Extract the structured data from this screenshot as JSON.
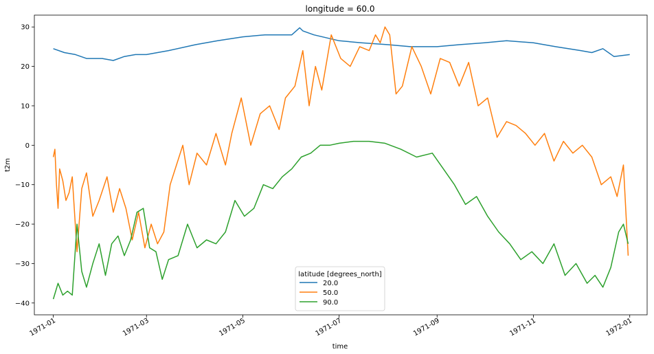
{
  "chart_data": {
    "type": "line",
    "title": "longitude = 60.0",
    "xlabel": "time",
    "ylabel": "t2m",
    "xlim": [
      "1970-12-20",
      "1972-01-12"
    ],
    "ylim": [
      -43,
      33
    ],
    "yticks": [
      -40,
      -30,
      -20,
      -10,
      0,
      10,
      20,
      30
    ],
    "ytick_labels": [
      "−40",
      "−30",
      "−20",
      "−10",
      "0",
      "10",
      "20",
      "30"
    ],
    "xticks": [
      "1971-01-01",
      "1971-03-01",
      "1971-05-01",
      "1971-07-01",
      "1971-09-01",
      "1971-11-01",
      "1972-01-01"
    ],
    "xtick_labels": [
      "1971-01",
      "1971-03",
      "1971-05",
      "1971-07",
      "1971-09",
      "1971-11",
      "1972-01"
    ],
    "grid": false,
    "legend": {
      "title": "latitude [degrees_north]",
      "placement": "lower-center"
    },
    "series": [
      {
        "name": "20.0",
        "color": "#1f77b4",
        "x": [
          "1971-01-01",
          "1971-01-08",
          "1971-01-15",
          "1971-01-22",
          "1971-02-01",
          "1971-02-08",
          "1971-02-15",
          "1971-02-22",
          "1971-03-01",
          "1971-03-15",
          "1971-04-01",
          "1971-04-15",
          "1971-05-01",
          "1971-05-15",
          "1971-06-01",
          "1971-06-06",
          "1971-06-08",
          "1971-06-15",
          "1971-07-01",
          "1971-07-15",
          "1971-08-01",
          "1971-08-15",
          "1971-09-01",
          "1971-09-15",
          "1971-10-01",
          "1971-10-15",
          "1971-11-01",
          "1971-11-15",
          "1971-12-01",
          "1971-12-08",
          "1971-12-15",
          "1971-12-22",
          "1972-01-01"
        ],
        "values": [
          24.5,
          23.5,
          23.0,
          22.0,
          22.0,
          21.5,
          22.5,
          23.0,
          23.0,
          24.0,
          25.5,
          26.5,
          27.5,
          28.0,
          28.0,
          29.8,
          29.0,
          28.0,
          26.5,
          26.0,
          25.5,
          25.0,
          25.0,
          25.5,
          26.0,
          26.5,
          26.0,
          25.0,
          24.0,
          23.5,
          24.5,
          22.5,
          23.0
        ]
      },
      {
        "name": "50.0",
        "color": "#ff7f0e",
        "x": [
          "1971-01-01",
          "1971-01-02",
          "1971-01-03",
          "1971-01-04",
          "1971-01-05",
          "1971-01-07",
          "1971-01-09",
          "1971-01-11",
          "1971-01-13",
          "1971-01-16",
          "1971-01-19",
          "1971-01-22",
          "1971-01-26",
          "1971-01-30",
          "1971-02-04",
          "1971-02-08",
          "1971-02-12",
          "1971-02-16",
          "1971-02-20",
          "1971-02-24",
          "1971-02-28",
          "1971-03-04",
          "1971-03-08",
          "1971-03-12",
          "1971-03-16",
          "1971-03-20",
          "1971-03-24",
          "1971-03-28",
          "1971-04-02",
          "1971-04-08",
          "1971-04-14",
          "1971-04-20",
          "1971-04-24",
          "1971-04-30",
          "1971-05-06",
          "1971-05-12",
          "1971-05-18",
          "1971-05-24",
          "1971-05-28",
          "1971-06-03",
          "1971-06-08",
          "1971-06-12",
          "1971-06-16",
          "1971-06-20",
          "1971-06-26",
          "1971-07-02",
          "1971-07-08",
          "1971-07-14",
          "1971-07-20",
          "1971-07-24",
          "1971-07-27",
          "1971-07-30",
          "1971-08-02",
          "1971-08-06",
          "1971-08-10",
          "1971-08-16",
          "1971-08-22",
          "1971-08-28",
          "1971-09-03",
          "1971-09-09",
          "1971-09-15",
          "1971-09-21",
          "1971-09-27",
          "1971-10-03",
          "1971-10-09",
          "1971-10-15",
          "1971-10-21",
          "1971-10-27",
          "1971-11-02",
          "1971-11-08",
          "1971-11-14",
          "1971-11-20",
          "1971-11-26",
          "1971-12-02",
          "1971-12-08",
          "1971-12-14",
          "1971-12-20",
          "1971-12-24",
          "1971-12-28",
          "1971-12-31"
        ],
        "values": [
          -3.0,
          -1.0,
          -10.0,
          -16.0,
          -6.0,
          -9.0,
          -14.0,
          -12.0,
          -8.0,
          -27.0,
          -11.0,
          -7.0,
          -18.0,
          -14.0,
          -8.0,
          -17.0,
          -11.0,
          -16.0,
          -24.0,
          -17.0,
          -26.0,
          -20.0,
          -25.0,
          -22.0,
          -10.0,
          -5.0,
          0.0,
          -10.0,
          -2.0,
          -5.0,
          3.0,
          -5.0,
          3.0,
          12.0,
          0.0,
          8.0,
          10.0,
          4.0,
          12.0,
          15.0,
          24.0,
          10.0,
          20.0,
          14.0,
          28.0,
          22.0,
          20.0,
          25.0,
          24.0,
          28.0,
          26.0,
          30.0,
          28.0,
          13.0,
          15.0,
          25.0,
          20.0,
          13.0,
          22.0,
          21.0,
          15.0,
          21.0,
          10.0,
          12.0,
          2.0,
          6.0,
          5.0,
          3.0,
          0.0,
          3.0,
          -4.0,
          1.0,
          -2.0,
          0.0,
          -3.0,
          -10.0,
          -8.0,
          -13.0,
          -5.0,
          -28.0
        ]
      },
      {
        "name": "90.0",
        "color": "#2ca02c",
        "x": [
          "1971-01-01",
          "1971-01-04",
          "1971-01-07",
          "1971-01-10",
          "1971-01-13",
          "1971-01-16",
          "1971-01-19",
          "1971-01-22",
          "1971-01-26",
          "1971-01-30",
          "1971-02-03",
          "1971-02-07",
          "1971-02-11",
          "1971-02-15",
          "1971-02-19",
          "1971-02-23",
          "1971-02-27",
          "1971-03-03",
          "1971-03-07",
          "1971-03-11",
          "1971-03-15",
          "1971-03-21",
          "1971-03-27",
          "1971-04-02",
          "1971-04-08",
          "1971-04-14",
          "1971-04-20",
          "1971-04-26",
          "1971-05-02",
          "1971-05-08",
          "1971-05-14",
          "1971-05-20",
          "1971-05-26",
          "1971-06-01",
          "1971-06-07",
          "1971-06-13",
          "1971-06-19",
          "1971-06-25",
          "1971-07-01",
          "1971-07-10",
          "1971-07-20",
          "1971-07-30",
          "1971-08-09",
          "1971-08-19",
          "1971-08-29",
          "1971-09-05",
          "1971-09-12",
          "1971-09-19",
          "1971-09-26",
          "1971-10-03",
          "1971-10-10",
          "1971-10-17",
          "1971-10-24",
          "1971-10-31",
          "1971-11-07",
          "1971-11-14",
          "1971-11-21",
          "1971-11-28",
          "1971-12-05",
          "1971-12-10",
          "1971-12-15",
          "1971-12-20",
          "1971-12-25",
          "1971-12-28",
          "1971-12-31"
        ],
        "values": [
          -39.0,
          -35.0,
          -38.0,
          -37.0,
          -38.0,
          -20.0,
          -32.0,
          -36.0,
          -30.0,
          -25.0,
          -33.0,
          -25.0,
          -23.0,
          -28.0,
          -24.0,
          -17.0,
          -16.0,
          -26.0,
          -27.0,
          -34.0,
          -29.0,
          -28.0,
          -20.0,
          -26.0,
          -24.0,
          -25.0,
          -22.0,
          -14.0,
          -18.0,
          -16.0,
          -10.0,
          -11.0,
          -8.0,
          -6.0,
          -3.0,
          -2.0,
          0.0,
          0.0,
          0.5,
          1.0,
          1.0,
          0.5,
          -1.0,
          -3.0,
          -2.0,
          -6.0,
          -10.0,
          -15.0,
          -13.0,
          -18.0,
          -22.0,
          -25.0,
          -29.0,
          -27.0,
          -30.0,
          -25.0,
          -33.0,
          -30.0,
          -35.0,
          -33.0,
          -36.0,
          -31.0,
          -22.0,
          -20.0,
          -25.0
        ]
      }
    ]
  }
}
